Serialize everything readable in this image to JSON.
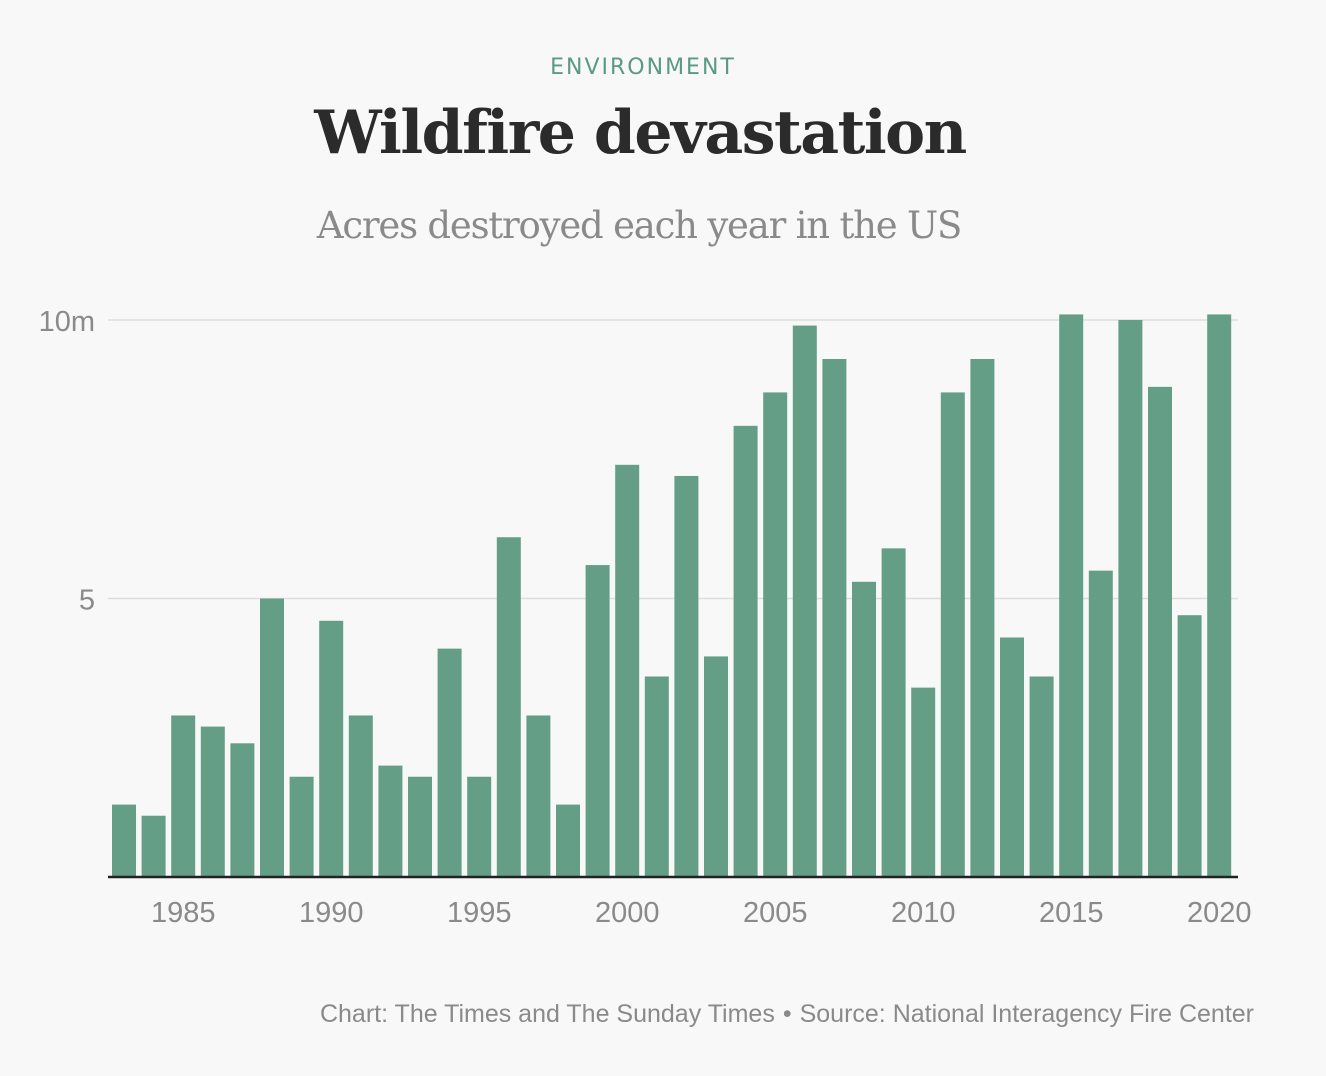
{
  "header": {
    "kicker": "ENVIRONMENT",
    "title": "Wildfire devastation",
    "subtitle": "Acres destroyed each year in the US"
  },
  "footer": {
    "credit": "Chart: The Times and The Sunday Times",
    "separator": "•",
    "source": "Source: National Interagency Fire Center"
  },
  "colors": {
    "bar": "#649e87",
    "kicker": "#5b9a82",
    "title": "#2b2b2b",
    "muted": "#8a8a8a",
    "gridline": "#dddddd",
    "baseline": "#222222",
    "background": "#f8f8f8"
  },
  "chart_data": {
    "type": "bar",
    "title": "Wildfire devastation",
    "subtitle": "Acres destroyed each year in the US",
    "xlabel": "",
    "ylabel": "",
    "ylim": [
      0,
      10
    ],
    "y_ticks": [
      {
        "value": 5,
        "label": "5"
      },
      {
        "value": 10,
        "label": "10m"
      }
    ],
    "x_tick_labels": [
      "1985",
      "1990",
      "1995",
      "2000",
      "2005",
      "2010",
      "2015",
      "2020"
    ],
    "grid": true,
    "legend": "none",
    "categories": [
      1983,
      1984,
      1985,
      1986,
      1987,
      1988,
      1989,
      1990,
      1991,
      1992,
      1993,
      1994,
      1995,
      1996,
      1997,
      1998,
      1999,
      2000,
      2001,
      2002,
      2003,
      2004,
      2005,
      2006,
      2007,
      2008,
      2009,
      2010,
      2011,
      2012,
      2013,
      2014,
      2015,
      2016,
      2017,
      2018,
      2019,
      2020
    ],
    "values": [
      1.3,
      1.1,
      2.9,
      2.7,
      2.4,
      5.0,
      1.8,
      4.6,
      2.9,
      2.0,
      1.8,
      4.1,
      1.8,
      6.1,
      2.9,
      1.3,
      5.6,
      7.4,
      3.6,
      7.2,
      3.96,
      8.1,
      8.7,
      9.9,
      9.3,
      5.3,
      5.9,
      3.4,
      8.7,
      9.3,
      4.3,
      3.6,
      10.1,
      5.5,
      10.0,
      8.8,
      4.7,
      10.1
    ]
  }
}
